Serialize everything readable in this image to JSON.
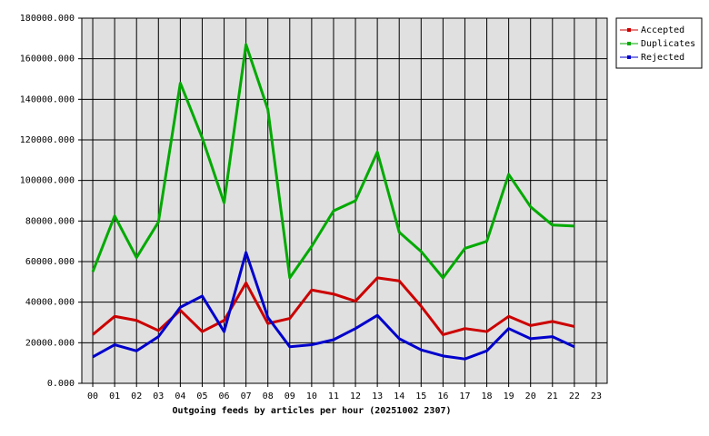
{
  "chart_data": {
    "type": "line",
    "title": "Outgoing feeds by articles per hour (20251002 2307)",
    "categories": [
      "00",
      "01",
      "02",
      "03",
      "04",
      "05",
      "06",
      "07",
      "08",
      "09",
      "10",
      "11",
      "12",
      "13",
      "14",
      "15",
      "16",
      "17",
      "18",
      "19",
      "20",
      "21",
      "22",
      "23"
    ],
    "series": [
      {
        "name": "Accepted",
        "color": "#cc0000",
        "values": [
          24000,
          33000,
          31000,
          26000,
          36000,
          25500,
          31000,
          49500,
          29500,
          32000,
          46000,
          44000,
          40500,
          52000,
          50500,
          38000,
          24000,
          27000,
          25500,
          33000,
          28500,
          30500,
          28000,
          null
        ]
      },
      {
        "name": "Duplicates",
        "color": "#00aa00",
        "values": [
          55000,
          82500,
          62000,
          79500,
          148000,
          121000,
          89000,
          167000,
          135000,
          52000,
          67500,
          85000,
          90000,
          114000,
          74500,
          65000,
          52000,
          66500,
          70000,
          103000,
          87000,
          78000,
          77500,
          null
        ]
      },
      {
        "name": "Rejected",
        "color": "#0000cc",
        "values": [
          13000,
          19000,
          16000,
          23000,
          37500,
          43000,
          25500,
          64500,
          32500,
          18000,
          19000,
          21500,
          27000,
          33500,
          22000,
          16500,
          13500,
          12000,
          16000,
          27000,
          22000,
          23000,
          18000,
          null
        ]
      }
    ],
    "ylim": [
      0,
      180000
    ],
    "yticks": [
      {
        "value": 0,
        "label": "0.000"
      },
      {
        "value": 20000,
        "label": "20000.000"
      },
      {
        "value": 40000,
        "label": "40000.000"
      },
      {
        "value": 60000,
        "label": "60000.000"
      },
      {
        "value": 80000,
        "label": "80000.000"
      },
      {
        "value": 100000,
        "label": "100000.000"
      },
      {
        "value": 120000,
        "label": "120000.000"
      },
      {
        "value": 140000,
        "label": "140000.000"
      },
      {
        "value": 160000,
        "label": "160000.000"
      },
      {
        "value": 180000,
        "label": "180000.000"
      }
    ],
    "grid": true,
    "legend": "right"
  }
}
